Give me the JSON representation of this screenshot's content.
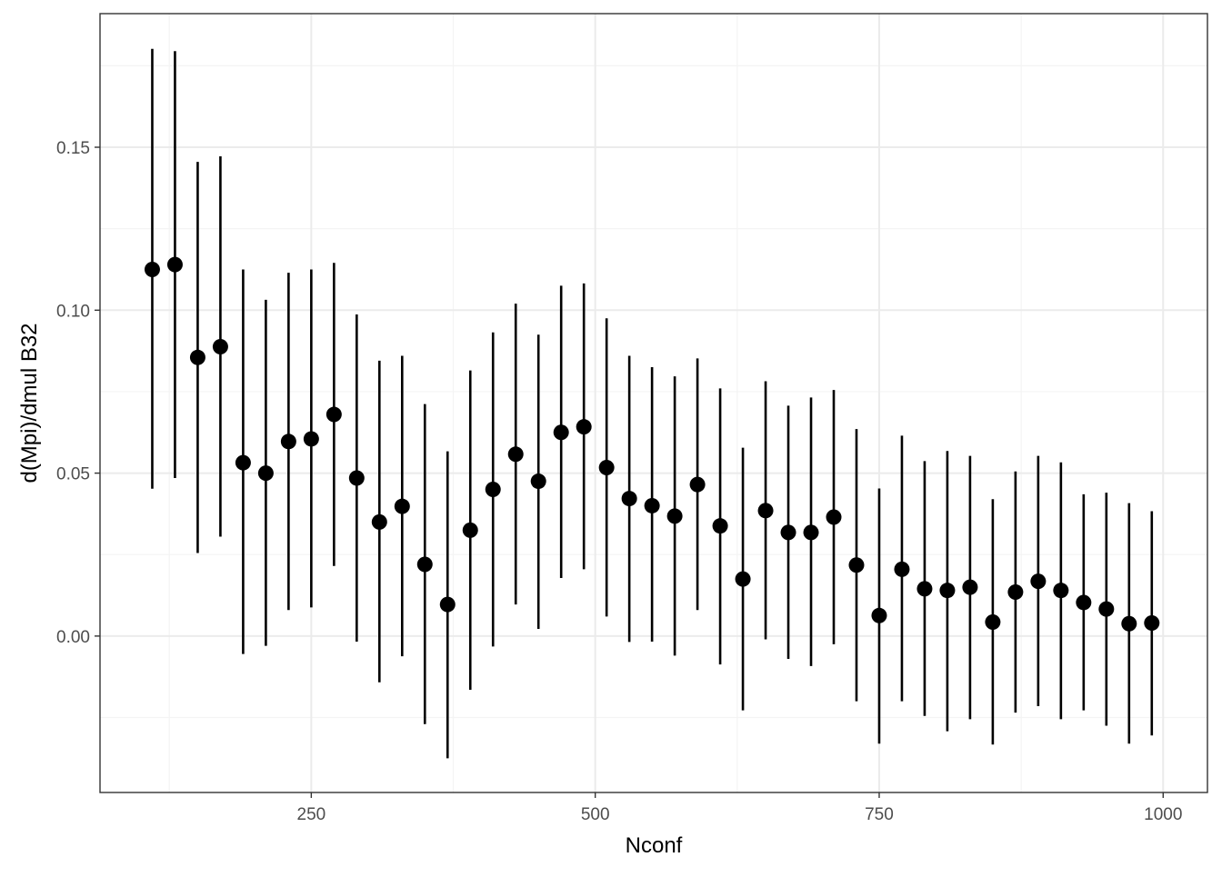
{
  "chart_data": {
    "type": "scatter",
    "subtype": "point-with-errorbars",
    "title": "",
    "xlabel": "Nconf",
    "ylabel": "d(Mpi)/dmul B32",
    "xlim": [
      64,
      1039
    ],
    "ylim": [
      -0.048,
      0.191
    ],
    "x_ticks": [
      {
        "value": 250,
        "label": "250"
      },
      {
        "value": 500,
        "label": "500"
      },
      {
        "value": 750,
        "label": "750"
      },
      {
        "value": 1000,
        "label": "1000"
      }
    ],
    "y_ticks": [
      {
        "value": 0.0,
        "label": "0.00"
      },
      {
        "value": 0.05,
        "label": "0.05"
      },
      {
        "value": 0.1,
        "label": "0.10"
      },
      {
        "value": 0.15,
        "label": "0.15"
      }
    ],
    "grid": true,
    "legend": "none",
    "colors": {
      "point": "#000000",
      "errorbar": "#000000",
      "grid_major": "#ebebeb",
      "grid_minor": "#f4f4f4",
      "panel_border": "#333333"
    },
    "series": [
      {
        "x": [
          110,
          130,
          150,
          170,
          190,
          210,
          230,
          250,
          270,
          290,
          310,
          330,
          350,
          370,
          390,
          410,
          430,
          450,
          470,
          490,
          510,
          530,
          550,
          570,
          590,
          610,
          630,
          650,
          670,
          690,
          710,
          730,
          750,
          770,
          790,
          810,
          830,
          850,
          870,
          890,
          910,
          930,
          950,
          970,
          990
        ],
        "y": [
          0.1125,
          0.114,
          0.0855,
          0.0888,
          0.0532,
          0.05,
          0.0597,
          0.0605,
          0.068,
          0.0485,
          0.035,
          0.0398,
          0.022,
          0.0097,
          0.0325,
          0.045,
          0.0558,
          0.0475,
          0.0625,
          0.0642,
          0.0517,
          0.0422,
          0.04,
          0.0368,
          0.0465,
          0.0338,
          0.0175,
          0.0385,
          0.0318,
          0.0318,
          0.0365,
          0.0218,
          0.0063,
          0.0205,
          0.0145,
          0.014,
          0.015,
          0.0043,
          0.0135,
          0.0168,
          0.014,
          0.0103,
          0.0083,
          0.0038,
          0.004
        ],
        "ymin": [
          0.0452,
          0.0485,
          0.0255,
          0.0305,
          -0.0055,
          -0.003,
          0.008,
          0.0088,
          0.0215,
          -0.0017,
          -0.0142,
          -0.0062,
          -0.027,
          -0.0375,
          -0.0165,
          -0.0032,
          0.0097,
          0.0022,
          0.0178,
          0.0205,
          0.006,
          -0.0018,
          -0.0017,
          -0.006,
          0.008,
          -0.0087,
          -0.0228,
          -0.001,
          -0.007,
          -0.0092,
          -0.0025,
          -0.02,
          -0.033,
          -0.02,
          -0.0245,
          -0.0292,
          -0.0255,
          -0.0333,
          -0.0235,
          -0.0215,
          -0.0255,
          -0.0228,
          -0.0275,
          -0.033,
          -0.0305
        ],
        "ymax": [
          0.1802,
          0.1795,
          0.1455,
          0.1472,
          0.1125,
          0.1032,
          0.1115,
          0.1125,
          0.1145,
          0.0987,
          0.0845,
          0.086,
          0.0712,
          0.0567,
          0.0815,
          0.0932,
          0.102,
          0.0925,
          0.1075,
          0.1082,
          0.0975,
          0.086,
          0.0825,
          0.0797,
          0.0852,
          0.076,
          0.0578,
          0.0782,
          0.0707,
          0.0732,
          0.0755,
          0.0635,
          0.0453,
          0.0615,
          0.0537,
          0.0568,
          0.0553,
          0.042,
          0.0505,
          0.0553,
          0.0533,
          0.0435,
          0.044,
          0.0408,
          0.0383
        ]
      }
    ]
  }
}
